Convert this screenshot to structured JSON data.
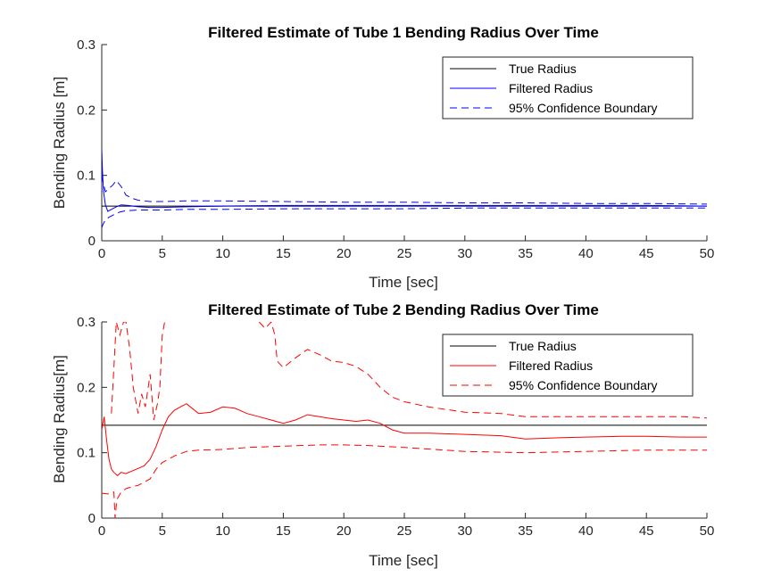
{
  "colors": {
    "true_radius": "#000000",
    "tube1": "#0000ff",
    "tube2": "#ff0000",
    "axis": "#262626",
    "background": "#ffffff"
  },
  "chart_data": [
    {
      "type": "line",
      "title": "Filtered Estimate of Tube 1 Bending Radius Over Time",
      "xlabel": "Time [sec]",
      "ylabel": "Bending Radius [m]",
      "xlim": [
        0,
        50
      ],
      "ylim": [
        0,
        0.3
      ],
      "xticks": [
        0,
        5,
        10,
        15,
        20,
        25,
        30,
        35,
        40,
        45,
        50
      ],
      "xtick_labels": [
        "0",
        "5",
        "10",
        "15",
        "20",
        "25",
        "30",
        "35",
        "40",
        "45",
        "50"
      ],
      "yticks": [
        0,
        0.1,
        0.2,
        0.3
      ],
      "ytick_labels": [
        "0",
        "0.1",
        "0.2",
        "0.3"
      ],
      "grid": false,
      "legend_location": "top-right",
      "series": [
        {
          "name": "True Radius",
          "style": "solid",
          "color": "#000000",
          "x": [
            0,
            50
          ],
          "y": [
            0.053,
            0.053
          ]
        },
        {
          "name": "Filtered Radius",
          "style": "solid",
          "color": "#0000ff",
          "x": [
            0,
            0.05,
            0.15,
            0.3,
            0.5,
            0.8,
            1.2,
            1.6,
            2.2,
            3,
            4,
            5,
            7,
            10,
            15,
            20,
            25,
            30,
            35,
            40,
            45,
            50
          ],
          "y": [
            0.14,
            0.11,
            0.075,
            0.055,
            0.045,
            0.048,
            0.052,
            0.055,
            0.054,
            0.052,
            0.051,
            0.051,
            0.052,
            0.053,
            0.054,
            0.054,
            0.054,
            0.054,
            0.054,
            0.054,
            0.054,
            0.053
          ]
        },
        {
          "name": "95% Confidence Boundary",
          "style": "dashed",
          "color": "#0000ff",
          "x": [
            0,
            0.1,
            0.3,
            0.6,
            0.9,
            1.2,
            1.6,
            2.0,
            2.5,
            3,
            4,
            5,
            7,
            10,
            15,
            20,
            25,
            30,
            35,
            40,
            45,
            50
          ],
          "y": [
            0.1,
            0.09,
            0.075,
            0.08,
            0.085,
            0.092,
            0.083,
            0.07,
            0.065,
            0.062,
            0.06,
            0.06,
            0.061,
            0.061,
            0.06,
            0.059,
            0.059,
            0.058,
            0.058,
            0.057,
            0.057,
            0.056
          ]
        },
        {
          "style": "dashed",
          "color": "#0000ff",
          "x": [
            0,
            0.1,
            0.3,
            0.6,
            1.0,
            1.5,
            2.0,
            3,
            4,
            5,
            7,
            10,
            15,
            20,
            25,
            30,
            35,
            40,
            45,
            50
          ],
          "y": [
            0.02,
            0.025,
            0.032,
            0.036,
            0.04,
            0.044,
            0.046,
            0.047,
            0.047,
            0.047,
            0.048,
            0.048,
            0.049,
            0.049,
            0.049,
            0.05,
            0.05,
            0.05,
            0.05,
            0.05
          ]
        }
      ]
    },
    {
      "type": "line",
      "title": "Filtered Estimate of Tube 2 Bending Radius Over Time",
      "xlabel": "Time [sec]",
      "ylabel": "Bending Radius[m]",
      "xlim": [
        0,
        50
      ],
      "ylim": [
        0,
        0.3
      ],
      "xticks": [
        0,
        5,
        10,
        15,
        20,
        25,
        30,
        35,
        40,
        45,
        50
      ],
      "xtick_labels": [
        "0",
        "5",
        "10",
        "15",
        "20",
        "25",
        "30",
        "35",
        "40",
        "45",
        "50"
      ],
      "yticks": [
        0,
        0.1,
        0.2,
        0.3
      ],
      "ytick_labels": [
        "0",
        "0.1",
        "0.2",
        "0.3"
      ],
      "grid": false,
      "legend_location": "top-right",
      "series": [
        {
          "name": "True Radius",
          "style": "solid",
          "color": "#000000",
          "x": [
            0,
            50
          ],
          "y": [
            0.142,
            0.142
          ]
        },
        {
          "name": "Filtered Radius",
          "style": "solid",
          "color": "#ff0000",
          "x": [
            0,
            0.2,
            0.4,
            0.6,
            0.8,
            1.0,
            1.3,
            1.6,
            2.0,
            2.5,
            3.0,
            3.5,
            4.0,
            4.5,
            5.0,
            5.5,
            6.0,
            6.5,
            7.0,
            8.0,
            9.0,
            10,
            11,
            12,
            13,
            14,
            15,
            16,
            17,
            18,
            19,
            20,
            21,
            22,
            23,
            24,
            25,
            27,
            30,
            33,
            35,
            38,
            40,
            43,
            45,
            48,
            50
          ],
          "y": [
            0.135,
            0.155,
            0.12,
            0.09,
            0.075,
            0.07,
            0.065,
            0.07,
            0.068,
            0.072,
            0.076,
            0.08,
            0.09,
            0.11,
            0.135,
            0.155,
            0.165,
            0.17,
            0.175,
            0.16,
            0.162,
            0.17,
            0.168,
            0.16,
            0.155,
            0.15,
            0.145,
            0.15,
            0.158,
            0.155,
            0.152,
            0.15,
            0.148,
            0.15,
            0.145,
            0.135,
            0.13,
            0.13,
            0.128,
            0.126,
            0.121,
            0.123,
            0.124,
            0.125,
            0.125,
            0.124,
            0.124
          ]
        },
        {
          "name": "95% Confidence Boundary",
          "style": "dashed",
          "color": "#ff0000",
          "x": [
            0.8,
            1.0,
            1.2,
            1.5,
            1.8,
            2.0,
            2.3,
            2.6,
            3.0,
            3.3,
            3.6,
            4.0,
            4.3,
            4.6,
            4.8,
            5.0,
            5.2
          ],
          "y": [
            0.16,
            0.23,
            0.3,
            0.28,
            0.3,
            0.3,
            0.26,
            0.2,
            0.16,
            0.19,
            0.17,
            0.22,
            0.15,
            0.175,
            0.2,
            0.28,
            0.3
          ]
        },
        {
          "style": "dashed",
          "color": "#ff0000",
          "x": [
            13.0,
            13.5,
            14.0,
            14.3,
            14.5,
            15.0,
            16.0,
            17.0,
            18.0,
            19.0,
            20.0,
            21.0,
            22.0,
            23.0,
            24.0,
            25.0,
            27,
            30,
            33,
            35,
            38,
            40,
            43,
            45,
            48,
            50
          ],
          "y": [
            0.3,
            0.29,
            0.3,
            0.28,
            0.24,
            0.23,
            0.245,
            0.258,
            0.25,
            0.24,
            0.238,
            0.232,
            0.22,
            0.2,
            0.185,
            0.178,
            0.17,
            0.162,
            0.16,
            0.155,
            0.155,
            0.155,
            0.155,
            0.155,
            0.155,
            0.153
          ]
        },
        {
          "style": "dashed",
          "color": "#ff0000",
          "x": [
            0,
            0.5,
            1.0,
            1.1,
            1.2,
            1.3,
            1.6,
            2.0,
            2.5,
            3.0,
            3.5,
            4.0,
            4.5,
            5.0,
            6.0,
            7.0,
            8.0,
            10,
            12,
            15,
            18,
            20,
            22,
            25,
            30,
            35,
            40,
            45,
            50
          ],
          "y": [
            0.038,
            0.037,
            0.04,
            0.0,
            0.02,
            0.03,
            0.04,
            0.045,
            0.048,
            0.05,
            0.055,
            0.06,
            0.075,
            0.085,
            0.095,
            0.102,
            0.104,
            0.105,
            0.108,
            0.11,
            0.112,
            0.112,
            0.111,
            0.108,
            0.102,
            0.1,
            0.102,
            0.104,
            0.104
          ]
        }
      ]
    }
  ]
}
